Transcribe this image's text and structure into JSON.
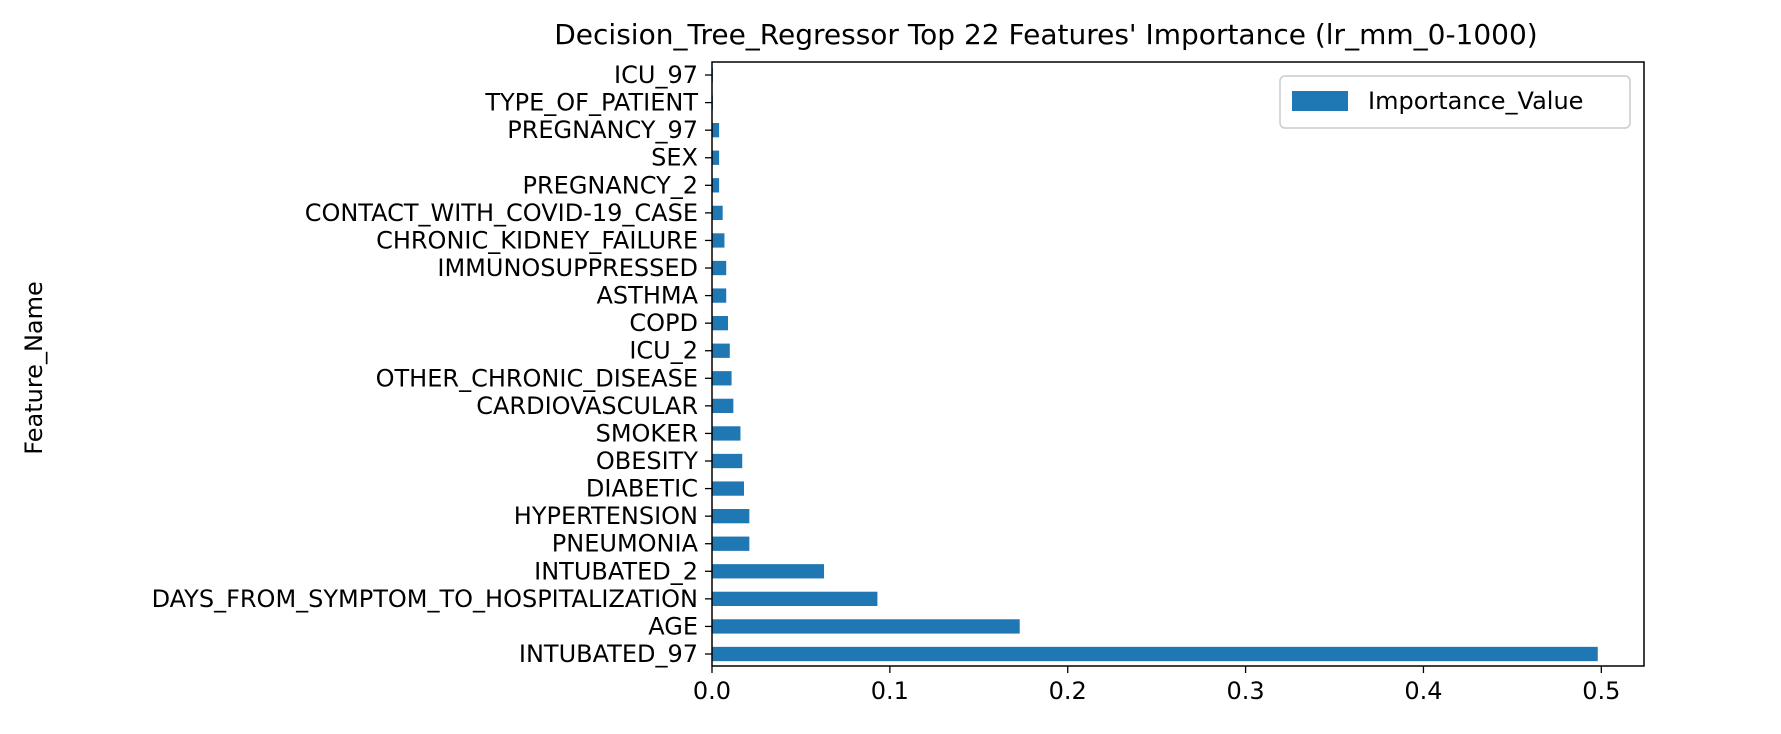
{
  "chart_data": {
    "type": "bar",
    "orientation": "horizontal",
    "title": "Decision_Tree_Regressor Top 22 Features' Importance (lr_mm_0-1000)",
    "xlabel": "",
    "ylabel": "Feature_Name",
    "xlim": [
      0,
      0.524
    ],
    "xticks": [
      0.0,
      0.1,
      0.2,
      0.3,
      0.4,
      0.5
    ],
    "xtick_labels": [
      "0.0",
      "0.1",
      "0.2",
      "0.3",
      "0.4",
      "0.5"
    ],
    "grid": false,
    "legend_position": "top-right",
    "bar_color": "#1f77b4",
    "categories": [
      "INTUBATED_97",
      "AGE",
      "DAYS_FROM_SYMPTOM_TO_HOSPITALIZATION",
      "INTUBATED_2",
      "PNEUMONIA",
      "HYPERTENSION",
      "DIABETIC",
      "OBESITY",
      "SMOKER",
      "CARDIOVASCULAR",
      "OTHER_CHRONIC_DISEASE",
      "ICU_2",
      "COPD",
      "ASTHMA",
      "IMMUNOSUPPRESSED",
      "CHRONIC_KIDNEY_FAILURE",
      "CONTACT_WITH_COVID-19_CASE",
      "PREGNANCY_2",
      "SEX",
      "PREGNANCY_97",
      "TYPE_OF_PATIENT",
      "ICU_97"
    ],
    "series": [
      {
        "name": "Importance_Value",
        "values": [
          0.498,
          0.173,
          0.093,
          0.063,
          0.021,
          0.021,
          0.018,
          0.017,
          0.016,
          0.012,
          0.011,
          0.01,
          0.009,
          0.008,
          0.008,
          0.007,
          0.006,
          0.004,
          0.004,
          0.004,
          0.0005,
          0.0005
        ]
      }
    ]
  }
}
